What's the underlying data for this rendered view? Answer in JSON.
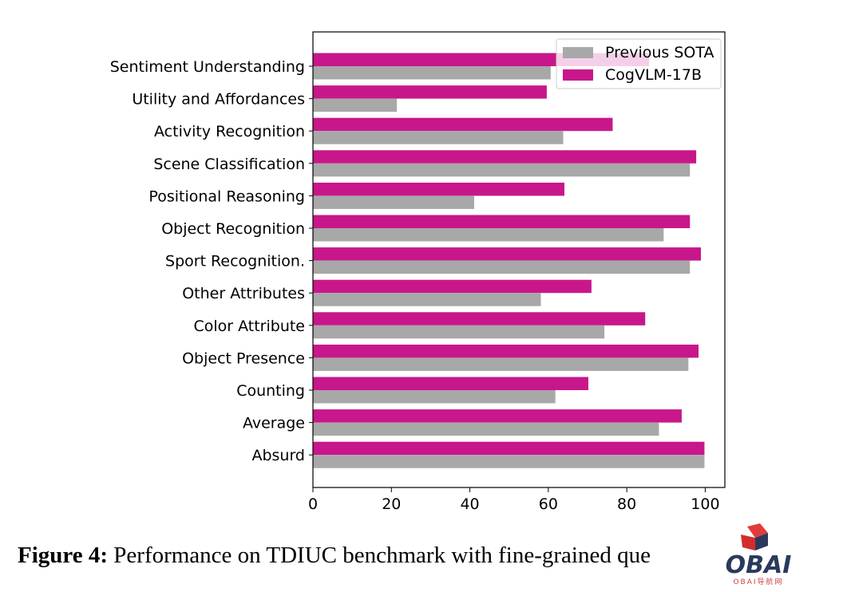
{
  "chart_data": {
    "type": "bar",
    "orientation": "horizontal",
    "categories": [
      "Sentiment Understanding",
      "Utility and Affordances",
      "Activity Recognition",
      "Scene Classification",
      "Positional Reasoning",
      "Object Recognition",
      "Sport Recognition.",
      "Other Attributes",
      "Color Attribute",
      "Object Presence",
      "Counting",
      "Average",
      "Absurd"
    ],
    "series": [
      {
        "name": "CogVLM-17B",
        "color": "#c8178a",
        "values": [
          85.7,
          59.6,
          76.4,
          97.7,
          64.1,
          96.1,
          98.9,
          71.0,
          84.7,
          98.3,
          70.2,
          94.0,
          99.8
        ]
      },
      {
        "name": "Previous SOTA",
        "color": "#a8a8a8",
        "values": [
          60.6,
          21.4,
          63.8,
          96.1,
          41.1,
          89.4,
          96.1,
          58.1,
          74.3,
          95.7,
          61.8,
          88.2,
          99.8
        ]
      }
    ],
    "xlim": [
      0,
      105
    ],
    "xticks": [
      "0",
      "20",
      "40",
      "60",
      "80",
      "100"
    ],
    "legend": {
      "position": "top-right",
      "entries": [
        "Previous SOTA",
        "CogVLM-17B"
      ]
    },
    "grid": false,
    "title": "",
    "xlabel": "",
    "ylabel": ""
  },
  "caption": {
    "label": "Figure 4:",
    "text": " Performance on TDIUC benchmark with fine-grained que"
  },
  "logo": {
    "word": "OBAI",
    "sub": "OBAI导航网"
  }
}
